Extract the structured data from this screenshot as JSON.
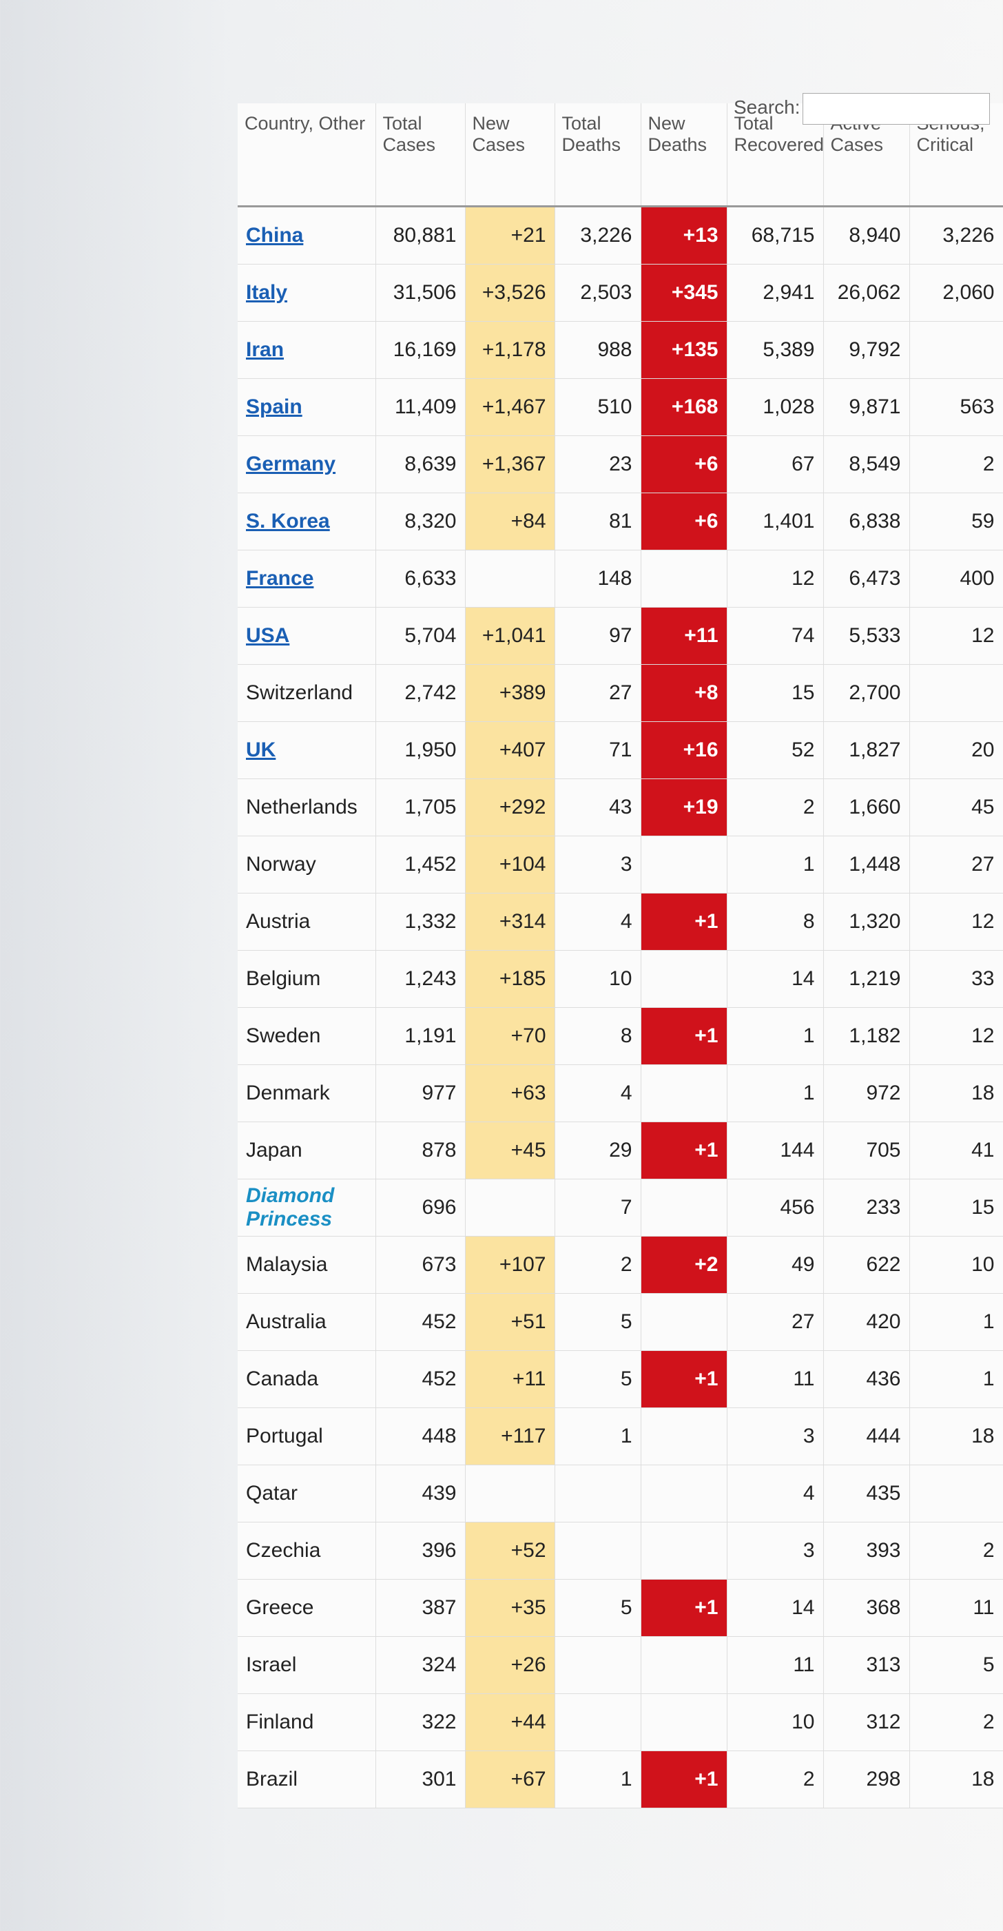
{
  "search_label": "Search:",
  "table": {
    "header": [
      "Country, Other",
      "Total Cases",
      "New Cases",
      "Total Deaths",
      "New Deaths",
      "Total Recovered",
      "Active Cases",
      "Serious, Critical"
    ],
    "rows": [
      {
        "style": "link",
        "cells": [
          "China",
          "80,881",
          "+21",
          "3,226",
          "+13",
          "68,715",
          "8,940",
          "3,226"
        ]
      },
      {
        "style": "link",
        "cells": [
          "Italy",
          "31,506",
          "+3,526",
          "2,503",
          "+345",
          "2,941",
          "26,062",
          "2,060"
        ]
      },
      {
        "style": "link",
        "cells": [
          "Iran",
          "16,169",
          "+1,178",
          "988",
          "+135",
          "5,389",
          "9,792",
          null
        ]
      },
      {
        "style": "link",
        "cells": [
          "Spain",
          "11,409",
          "+1,467",
          "510",
          "+168",
          "1,028",
          "9,871",
          "563"
        ]
      },
      {
        "style": "link",
        "cells": [
          "Germany",
          "8,639",
          "+1,367",
          "23",
          "+6",
          "67",
          "8,549",
          "2"
        ]
      },
      {
        "style": "link",
        "cells": [
          "S. Korea",
          "8,320",
          "+84",
          "81",
          "+6",
          "1,401",
          "6,838",
          "59"
        ]
      },
      {
        "style": "link",
        "cells": [
          "France",
          "6,633",
          null,
          "148",
          null,
          "12",
          "6,473",
          "400"
        ]
      },
      {
        "style": "link",
        "cells": [
          "USA",
          "5,704",
          "+1,041",
          "97",
          "+11",
          "74",
          "5,533",
          "12"
        ]
      },
      {
        "style": "plain",
        "cells": [
          "Switzerland",
          "2,742",
          "+389",
          "27",
          "+8",
          "15",
          "2,700",
          null
        ]
      },
      {
        "style": "link",
        "cells": [
          "UK",
          "1,950",
          "+407",
          "71",
          "+16",
          "52",
          "1,827",
          "20"
        ]
      },
      {
        "style": "plain",
        "cells": [
          "Netherlands",
          "1,705",
          "+292",
          "43",
          "+19",
          "2",
          "1,660",
          "45"
        ]
      },
      {
        "style": "plain",
        "cells": [
          "Norway",
          "1,452",
          "+104",
          "3",
          null,
          "1",
          "1,448",
          "27"
        ]
      },
      {
        "style": "plain",
        "cells": [
          "Austria",
          "1,332",
          "+314",
          "4",
          "+1",
          "8",
          "1,320",
          "12"
        ]
      },
      {
        "style": "plain",
        "cells": [
          "Belgium",
          "1,243",
          "+185",
          "10",
          null,
          "14",
          "1,219",
          "33"
        ]
      },
      {
        "style": "plain",
        "cells": [
          "Sweden",
          "1,191",
          "+70",
          "8",
          "+1",
          "1",
          "1,182",
          "12"
        ]
      },
      {
        "style": "plain",
        "cells": [
          "Denmark",
          "977",
          "+63",
          "4",
          null,
          "1",
          "972",
          "18"
        ]
      },
      {
        "style": "plain",
        "cells": [
          "Japan",
          "878",
          "+45",
          "29",
          "+1",
          "144",
          "705",
          "41"
        ]
      },
      {
        "style": "ship",
        "cells": [
          "Diamond Princess",
          "696",
          null,
          "7",
          null,
          "456",
          "233",
          "15"
        ]
      },
      {
        "style": "plain",
        "cells": [
          "Malaysia",
          "673",
          "+107",
          "2",
          "+2",
          "49",
          "622",
          "10"
        ]
      },
      {
        "style": "plain",
        "cells": [
          "Australia",
          "452",
          "+51",
          "5",
          null,
          "27",
          "420",
          "1"
        ]
      },
      {
        "style": "plain",
        "cells": [
          "Canada",
          "452",
          "+11",
          "5",
          "+1",
          "11",
          "436",
          "1"
        ]
      },
      {
        "style": "plain",
        "cells": [
          "Portugal",
          "448",
          "+117",
          "1",
          null,
          "3",
          "444",
          "18"
        ]
      },
      {
        "style": "plain",
        "cells": [
          "Qatar",
          "439",
          null,
          null,
          null,
          "4",
          "435",
          null
        ]
      },
      {
        "style": "plain",
        "cells": [
          "Czechia",
          "396",
          "+52",
          null,
          null,
          "3",
          "393",
          "2"
        ]
      },
      {
        "style": "plain",
        "cells": [
          "Greece",
          "387",
          "+35",
          "5",
          "+1",
          "14",
          "368",
          "11"
        ]
      },
      {
        "style": "plain",
        "cells": [
          "Israel",
          "324",
          "+26",
          null,
          null,
          "11",
          "313",
          "5"
        ]
      },
      {
        "style": "plain",
        "cells": [
          "Finland",
          "322",
          "+44",
          null,
          null,
          "10",
          "312",
          "2"
        ]
      },
      {
        "style": "plain",
        "cells": [
          "Brazil",
          "301",
          "+67",
          "1",
          "+1",
          "2",
          "298",
          "18"
        ]
      }
    ]
  }
}
